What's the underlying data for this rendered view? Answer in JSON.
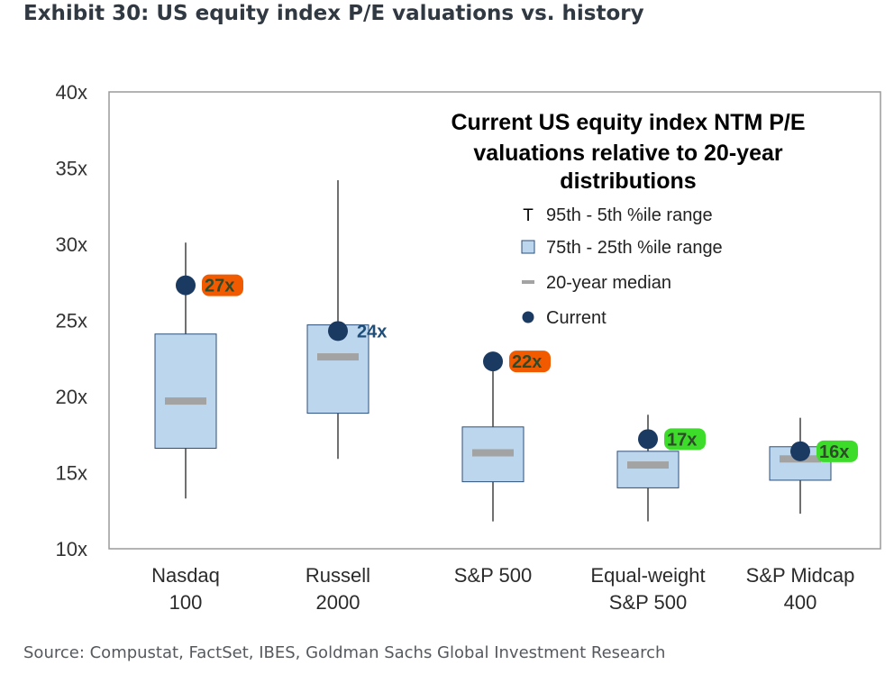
{
  "exhibit": {
    "title": "Exhibit 30: US equity index P/E valuations vs. history",
    "source": "Source: Compustat, FactSet, IBES, Goldman Sachs Global Investment Research"
  },
  "colors": {
    "box_fill": "#bcd6ee",
    "box_stroke": "#2c4f79",
    "median": "#a3a3a3",
    "current": "#1b3a62",
    "whisker": "#404040",
    "highlight_orange": "#f25a00",
    "highlight_green": "#3ddc2a",
    "label_blue": "#1f4e79"
  },
  "chart_data": {
    "type": "boxplot",
    "title": "Current US equity index NTM P/E valuations relative to 20-year distributions",
    "title_lines": [
      "Current US equity index NTM P/E",
      "valuations relative to 20-year",
      "distributions"
    ],
    "ylim": [
      10,
      40
    ],
    "yticks": [
      10,
      15,
      20,
      25,
      30,
      35,
      40
    ],
    "ytick_labels": [
      "10x",
      "15x",
      "20x",
      "25x",
      "30x",
      "35x",
      "40x"
    ],
    "categories": [
      {
        "line1": "Nasdaq",
        "line2": "100"
      },
      {
        "line1": "Russell",
        "line2": "2000"
      },
      {
        "line1": "S&P 500",
        "line2": ""
      },
      {
        "line1": "Equal-weight",
        "line2": "S&P 500"
      },
      {
        "line1": "S&P Midcap",
        "line2": "400"
      }
    ],
    "series": [
      {
        "name": "95th - 5th %ile range",
        "low": [
          13.3,
          15.9,
          11.8,
          11.8,
          12.3
        ],
        "high": [
          30.1,
          34.2,
          22.0,
          18.8,
          18.6
        ]
      },
      {
        "name": "75th - 25th %ile range",
        "q1": [
          16.6,
          18.9,
          14.4,
          14.0,
          14.5
        ],
        "q3": [
          24.1,
          24.7,
          18.0,
          16.4,
          16.7
        ]
      },
      {
        "name": "20-year median",
        "values": [
          19.7,
          22.6,
          16.3,
          15.5,
          15.9
        ]
      },
      {
        "name": "Current",
        "values": [
          27.3,
          24.3,
          22.3,
          17.2,
          16.4
        ]
      }
    ],
    "current_labels": [
      "27x",
      "24x",
      "22x",
      "17x",
      "16x"
    ],
    "current_label_highlight": [
      "orange",
      "none",
      "orange",
      "green",
      "green"
    ],
    "legend": {
      "position": "top-right",
      "items": [
        {
          "symbol": "T",
          "label": "95th - 5th %ile range"
        },
        {
          "symbol": "box",
          "label": "75th - 25th %ile range"
        },
        {
          "symbol": "dash",
          "label": "20-year median"
        },
        {
          "symbol": "dot",
          "label": "Current"
        }
      ]
    }
  }
}
